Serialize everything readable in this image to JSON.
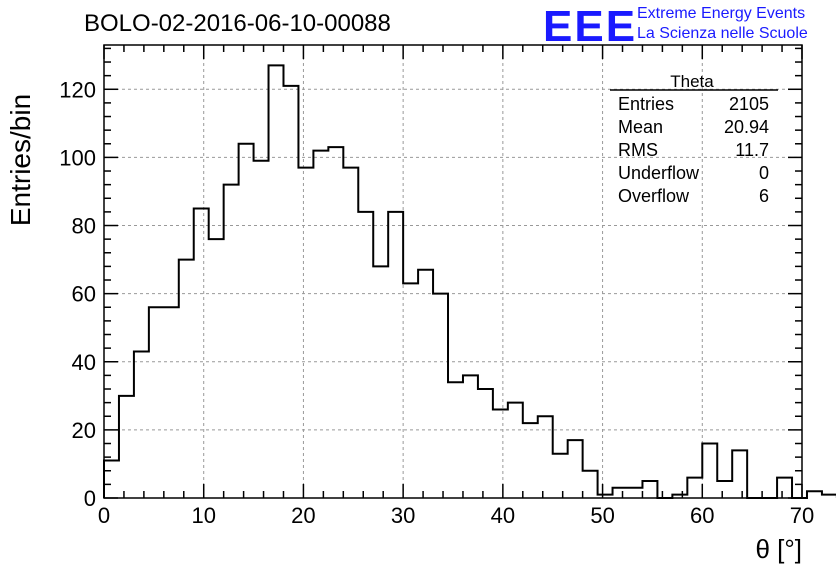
{
  "header": {
    "title": "BOLO-02-2016-06-10-00088",
    "logo": "EEE",
    "logo_line1": "Extreme Energy Events",
    "logo_line2": "La Scienza nelle Scuole"
  },
  "chart_data": {
    "type": "bar",
    "xlabel": "θ [°]",
    "ylabel": "Entries/bin",
    "xlim": [
      0,
      70
    ],
    "ylim": [
      0,
      133
    ],
    "grid": true,
    "bin_width": 1.5,
    "xticks": [
      0,
      10,
      20,
      30,
      40,
      50,
      60,
      70
    ],
    "yticks": [
      0,
      20,
      40,
      60,
      80,
      100,
      120
    ],
    "values": [
      11,
      30,
      43,
      56,
      56,
      70,
      85,
      76,
      92,
      104,
      99,
      127,
      121,
      97,
      102,
      103,
      97,
      84,
      68,
      84,
      63,
      67,
      60,
      34,
      36,
      32,
      26,
      28,
      22,
      24,
      13,
      17,
      8,
      1,
      3,
      3,
      5,
      0,
      1,
      6,
      16,
      5,
      14,
      0,
      0,
      6,
      0,
      2,
      1
    ],
    "stats": {
      "name": "Theta",
      "rows": [
        {
          "label": "Entries",
          "value": "2105"
        },
        {
          "label": "Mean",
          "value": "20.94"
        },
        {
          "label": "RMS",
          "value": "11.7"
        },
        {
          "label": "Underflow",
          "value": "0"
        },
        {
          "label": "Overflow",
          "value": "6"
        }
      ]
    }
  }
}
